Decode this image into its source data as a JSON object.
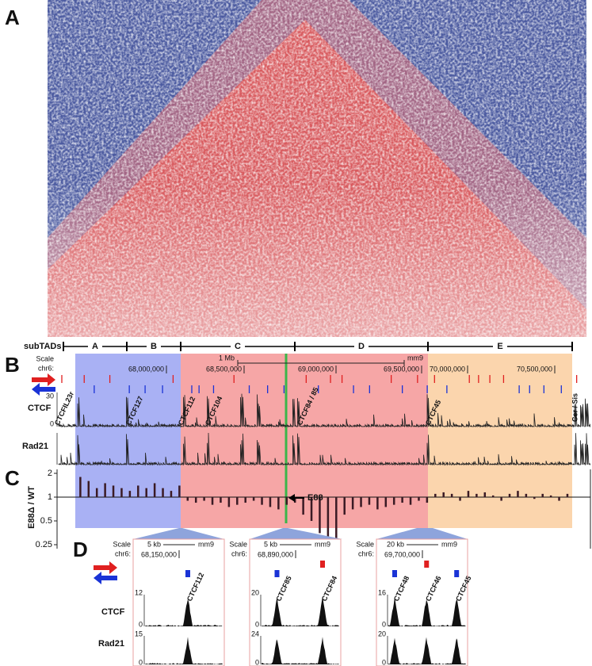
{
  "panels": {
    "a": "A",
    "b": "B",
    "c": "C",
    "d": "D"
  },
  "subtads": {
    "label": "subTADs",
    "domains": [
      "A",
      "B",
      "C",
      "D",
      "E"
    ]
  },
  "browser": {
    "scale": "Scale",
    "chrom": "chr6:",
    "scale_bar": "1 Mb",
    "assembly": "mm9",
    "coordinates": [
      "68,000,000",
      "68,500,000",
      "69,000,000",
      "69,500,000",
      "70,000,000",
      "70,500,000"
    ]
  },
  "tracks": {
    "ctcf": {
      "label": "CTCF",
      "max": "30",
      "min": "0"
    },
    "rad21": {
      "label": "Rad21"
    }
  },
  "sites": [
    "CTCFIL23r",
    "CTCF127",
    "CTCF112",
    "CTCF104",
    "CTCF84 / 85",
    "CTCF45",
    "Cer / Sis"
  ],
  "ratio": {
    "axis_label": "E88Δ / WT",
    "enhancer": "E88",
    "log_scale": true,
    "color": "#3a1a24",
    "yticks": [
      2,
      1,
      0.5,
      0.25
    ],
    "values": [
      1.8,
      1.6,
      1.3,
      1.5,
      1.4,
      1.3,
      1.2,
      1.4,
      1.3,
      1.5,
      1.3,
      1.2,
      1.4,
      0.9,
      0.85,
      0.9,
      0.8,
      0.85,
      0.75,
      0.8,
      0.85,
      0.9,
      0.8,
      0.75,
      0.7,
      0.8,
      0.85,
      0.6,
      0.5,
      0.35,
      0.25,
      0.3,
      0.6,
      0.7,
      0.75,
      0.8,
      0.7,
      0.75,
      0.8,
      0.85,
      0.8,
      0.9,
      0.85,
      1.1,
      1.15,
      1.1,
      0.9,
      1.2,
      1.1,
      1.15,
      1.05,
      0.9,
      1.1,
      1.2,
      1.1,
      0.95,
      1.1,
      1.05,
      0.9,
      1.1
    ]
  },
  "zoom_tracks": [
    "CTCF",
    "Rad21"
  ],
  "zooms": [
    {
      "scale": "Scale",
      "chrom": "chr6:",
      "scale_bar": "5 kb",
      "assembly": "mm9",
      "coordinate": "68,150,000",
      "ctcf_max": "12",
      "ctcf_min": "0",
      "rad21_max": "15",
      "rad21_min": "0",
      "sites": [
        "CTCF112"
      ]
    },
    {
      "scale": "Scale",
      "chrom": "chr6:",
      "scale_bar": "5 kb",
      "assembly": "mm9",
      "coordinate": "68,890,000",
      "ctcf_max": "20",
      "ctcf_min": "0",
      "rad21_max": "24",
      "rad21_min": "0",
      "sites": [
        "CTCF85",
        "CTCF84"
      ]
    },
    {
      "scale": "Scale",
      "chrom": "chr6:",
      "scale_bar": "20 kb",
      "assembly": "mm9",
      "coordinate": "69,700,000",
      "ctcf_max": "16",
      "ctcf_min": "0",
      "rad21_max": "20",
      "rad21_min": "0",
      "sites": [
        "CTCF48",
        "CTCF46",
        "CTCF45"
      ]
    }
  ]
}
